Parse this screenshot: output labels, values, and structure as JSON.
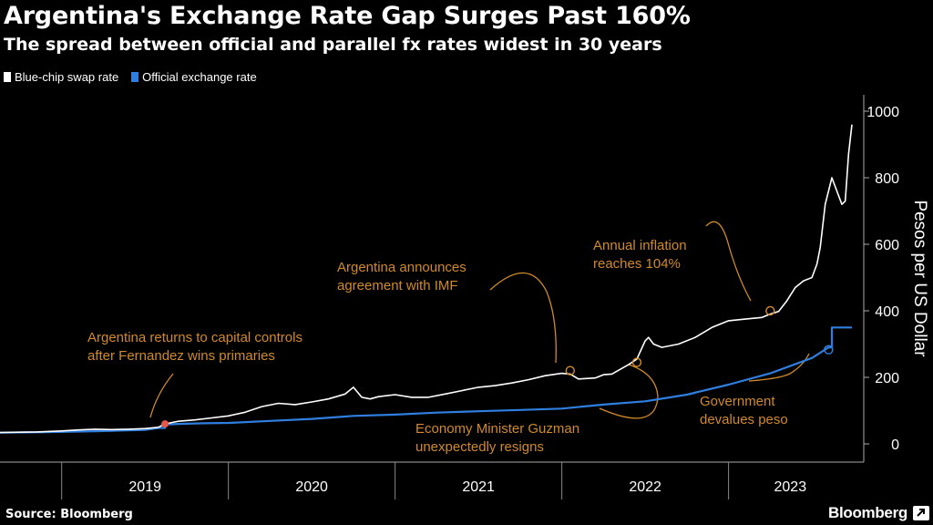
{
  "header": {
    "title": "Argentina's Exchange Rate Gap Surges Past 160%",
    "subtitle": "The spread between official and parallel fx rates widest in 30 years"
  },
  "legend": {
    "items": [
      {
        "label": "Blue-chip swap rate",
        "color": "#ffffff"
      },
      {
        "label": "Official exchange rate",
        "color": "#2f7fe0"
      }
    ]
  },
  "footer": {
    "source": "Source: Bloomberg",
    "brand": "Bloomberg"
  },
  "chart_data": {
    "type": "line",
    "title": "Argentina's Exchange Rate Gap Surges Past 160%",
    "subtitle": "The spread between official and parallel fx rates widest in 30 years",
    "ylabel": "Pesos per US Dollar",
    "xlabel": "",
    "ylim": [
      0,
      1000
    ],
    "yticks": [
      0,
      200,
      400,
      600,
      800,
      1000
    ],
    "xticks": [
      "2019",
      "2020",
      "2021",
      "2022",
      "2023"
    ],
    "x_range": [
      2018.63,
      2023.74
    ],
    "y_axis_side": "right",
    "legend_position": "top-left",
    "grid": false,
    "series": [
      {
        "name": "Blue-chip swap rate",
        "color": "#ffffff",
        "x": [
          2018.63,
          2018.75,
          2018.85,
          2019.0,
          2019.1,
          2019.2,
          2019.3,
          2019.4,
          2019.5,
          2019.58,
          2019.62,
          2019.65,
          2019.7,
          2019.8,
          2019.9,
          2020.0,
          2020.1,
          2020.2,
          2020.3,
          2020.4,
          2020.5,
          2020.6,
          2020.7,
          2020.75,
          2020.8,
          2020.85,
          2020.9,
          2021.0,
          2021.1,
          2021.2,
          2021.3,
          2021.4,
          2021.5,
          2021.6,
          2021.7,
          2021.8,
          2021.9,
          2022.0,
          2022.05,
          2022.1,
          2022.2,
          2022.25,
          2022.3,
          2022.4,
          2022.45,
          2022.5,
          2022.52,
          2022.55,
          2022.6,
          2022.7,
          2022.8,
          2022.9,
          2023.0,
          2023.1,
          2023.2,
          2023.25,
          2023.3,
          2023.35,
          2023.4,
          2023.45,
          2023.5,
          2023.53,
          2023.55,
          2023.58,
          2023.62,
          2023.65,
          2023.68,
          2023.7,
          2023.72,
          2023.74
        ],
        "y": [
          34,
          35,
          36,
          39,
          42,
          44,
          43,
          44,
          46,
          50,
          60,
          63,
          68,
          72,
          78,
          84,
          95,
          112,
          122,
          118,
          126,
          135,
          150,
          170,
          140,
          135,
          142,
          148,
          140,
          140,
          150,
          160,
          170,
          175,
          183,
          193,
          205,
          212,
          210,
          195,
          198,
          208,
          210,
          238,
          255,
          310,
          320,
          300,
          290,
          300,
          320,
          350,
          370,
          375,
          380,
          390,
          398,
          430,
          470,
          490,
          500,
          540,
          590,
          720,
          800,
          760,
          720,
          730,
          870,
          960
        ]
      },
      {
        "name": "Official exchange rate",
        "color": "#2f7fe0",
        "x": [
          2018.63,
          2018.9,
          2019.2,
          2019.5,
          2019.58,
          2019.62,
          2019.7,
          2019.85,
          2020.0,
          2020.25,
          2020.5,
          2020.75,
          2021.0,
          2021.25,
          2021.5,
          2021.75,
          2022.0,
          2022.25,
          2022.5,
          2022.75,
          2023.0,
          2023.25,
          2023.5,
          2023.6,
          2023.62,
          2023.74
        ],
        "y": [
          34,
          35,
          38,
          42,
          48,
          58,
          60,
          62,
          63,
          69,
          75,
          84,
          88,
          94,
          98,
          102,
          106,
          118,
          128,
          148,
          178,
          212,
          258,
          290,
          350,
          350
        ]
      }
    ],
    "markers": [
      {
        "x": 2019.62,
        "y": 60,
        "color": "#e8584a"
      },
      {
        "x": 2022.05,
        "y": 220,
        "color": "#d08a2a"
      },
      {
        "x": 2022.45,
        "y": 245,
        "color": "#d08a2a"
      },
      {
        "x": 2023.25,
        "y": 400,
        "color": "#d08a2a"
      },
      {
        "x": 2023.6,
        "y": 283,
        "color": "#2f7fe0"
      }
    ],
    "annotations": [
      {
        "lines": [
          "Argentina returns to capital controls",
          "after Fernandez wins primaries"
        ]
      },
      {
        "lines": [
          "Argentina announces",
          "agreement with IMF"
        ]
      },
      {
        "lines": [
          "Annual inflation",
          "reaches 104%"
        ]
      },
      {
        "lines": [
          "Economy Minister Guzman",
          "unexpectedly resigns"
        ]
      },
      {
        "lines": [
          "Government",
          "devalues peso"
        ]
      }
    ]
  }
}
